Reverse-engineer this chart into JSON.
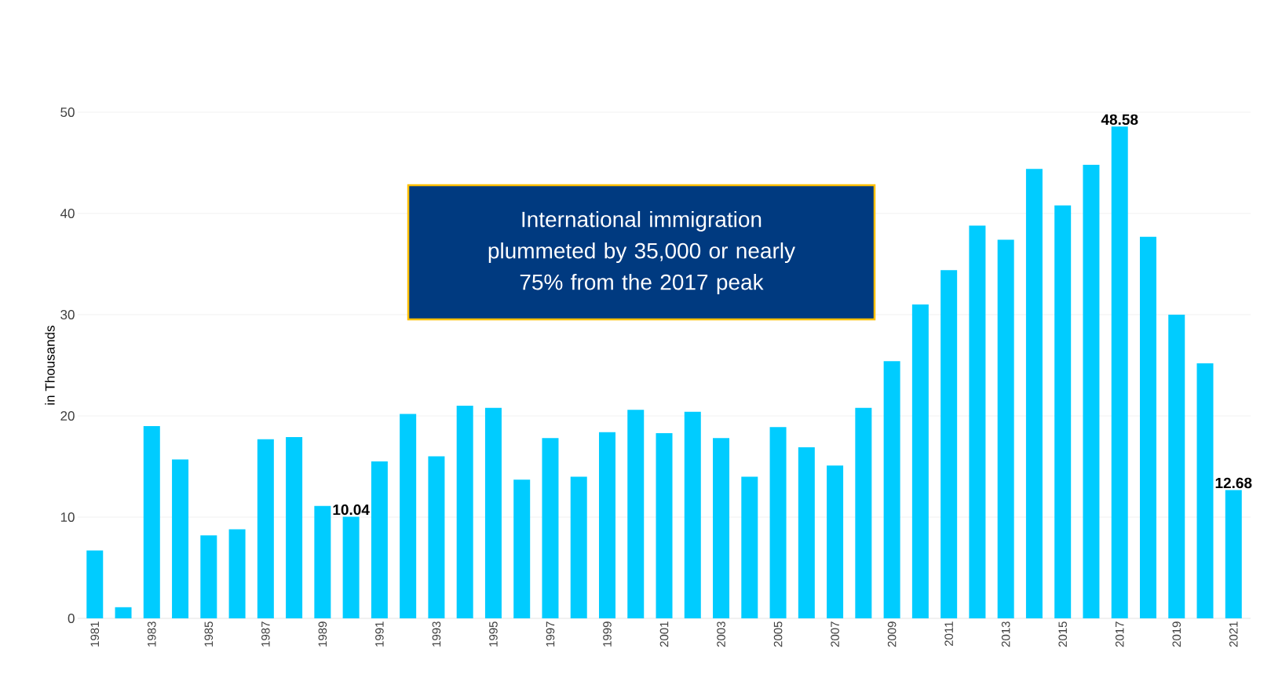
{
  "chart_data": {
    "type": "bar",
    "ylabel": "in Thousands",
    "categories": [
      "1981",
      null,
      "1983",
      null,
      "1985",
      null,
      "1987",
      null,
      "1989",
      null,
      "1991",
      null,
      "1993",
      null,
      "1995",
      null,
      "1997",
      null,
      "1999",
      null,
      "2001",
      null,
      "2003",
      null,
      "2005",
      null,
      "2007",
      null,
      "2009",
      null,
      "2011",
      null,
      "2013",
      null,
      "2015",
      null,
      "2017",
      null,
      "2019",
      null,
      "2021"
    ],
    "values": [
      6.7,
      1.1,
      19.0,
      15.7,
      8.2,
      8.8,
      17.7,
      17.9,
      11.1,
      10.04,
      15.5,
      20.2,
      16.0,
      21.0,
      20.8,
      13.7,
      17.8,
      14.0,
      18.4,
      20.6,
      18.3,
      20.4,
      17.8,
      14.0,
      18.9,
      16.9,
      15.1,
      20.8,
      25.4,
      31.0,
      34.4,
      38.8,
      37.4,
      44.4,
      40.8,
      44.8,
      48.58,
      37.7,
      30.0,
      25.2,
      12.68
    ],
    "value_labels": [
      null,
      null,
      null,
      null,
      null,
      null,
      null,
      null,
      null,
      "10.04",
      null,
      null,
      null,
      null,
      null,
      null,
      null,
      null,
      null,
      null,
      null,
      null,
      null,
      null,
      null,
      null,
      null,
      null,
      null,
      null,
      null,
      null,
      null,
      null,
      null,
      null,
      "48.58",
      null,
      null,
      null,
      "12.68"
    ],
    "color": "#00ccff",
    "ylim": [
      0,
      50
    ],
    "yticks": [
      0,
      10,
      20,
      30,
      40,
      50
    ],
    "grid": "y",
    "annotations": [
      "International immigration plummeted by 35,000 or nearly 75% from the 2017 peak"
    ]
  }
}
